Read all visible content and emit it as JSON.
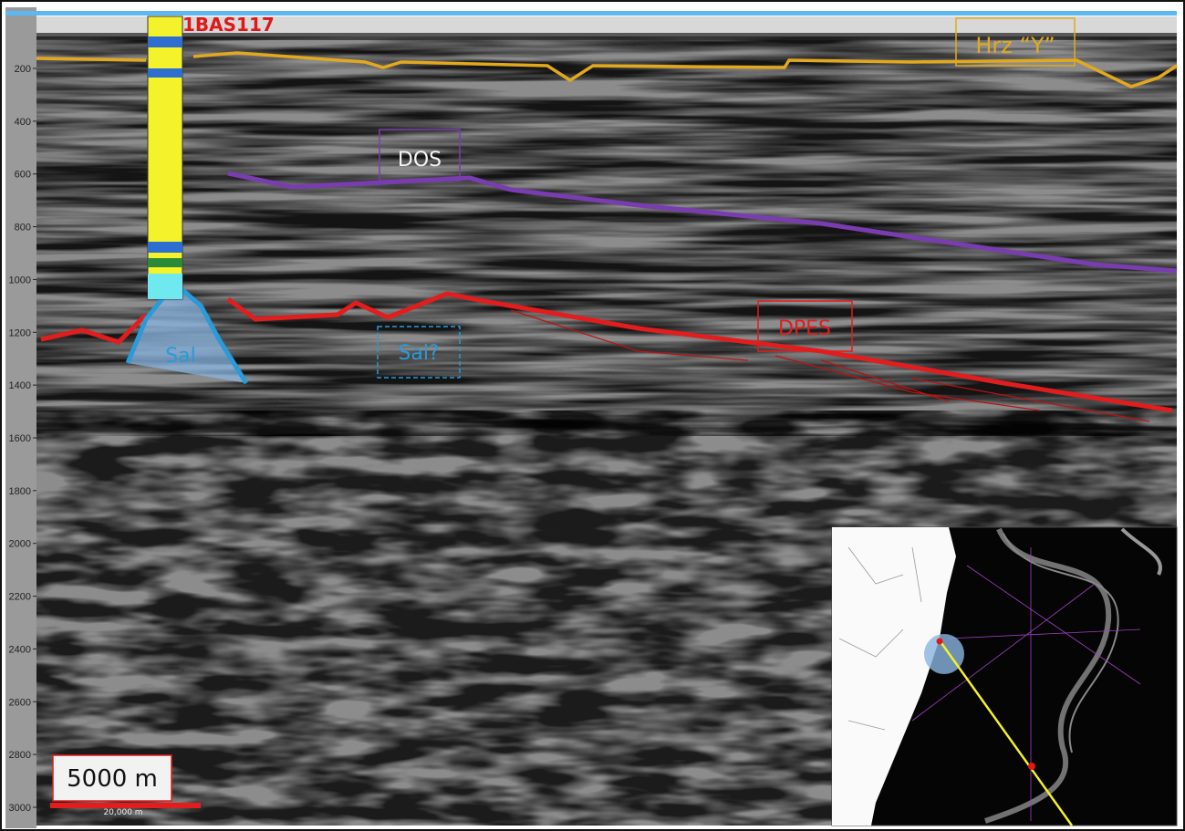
{
  "well": {
    "label": "1BAS117"
  },
  "horizons": {
    "hrz_y": "Hrz “Y”",
    "dos": "DOS",
    "dpes": "DPES"
  },
  "bodies": {
    "salt": "Sal",
    "salt_query": "Sal?"
  },
  "scale_bar": {
    "label": "5000 m",
    "sub_label": "20,000 m"
  },
  "depth_axis": {
    "ticks": [
      200,
      400,
      600,
      800,
      1000,
      1200,
      1400,
      1600,
      1800,
      2000,
      2200,
      2400,
      2600,
      2800,
      3000
    ]
  }
}
